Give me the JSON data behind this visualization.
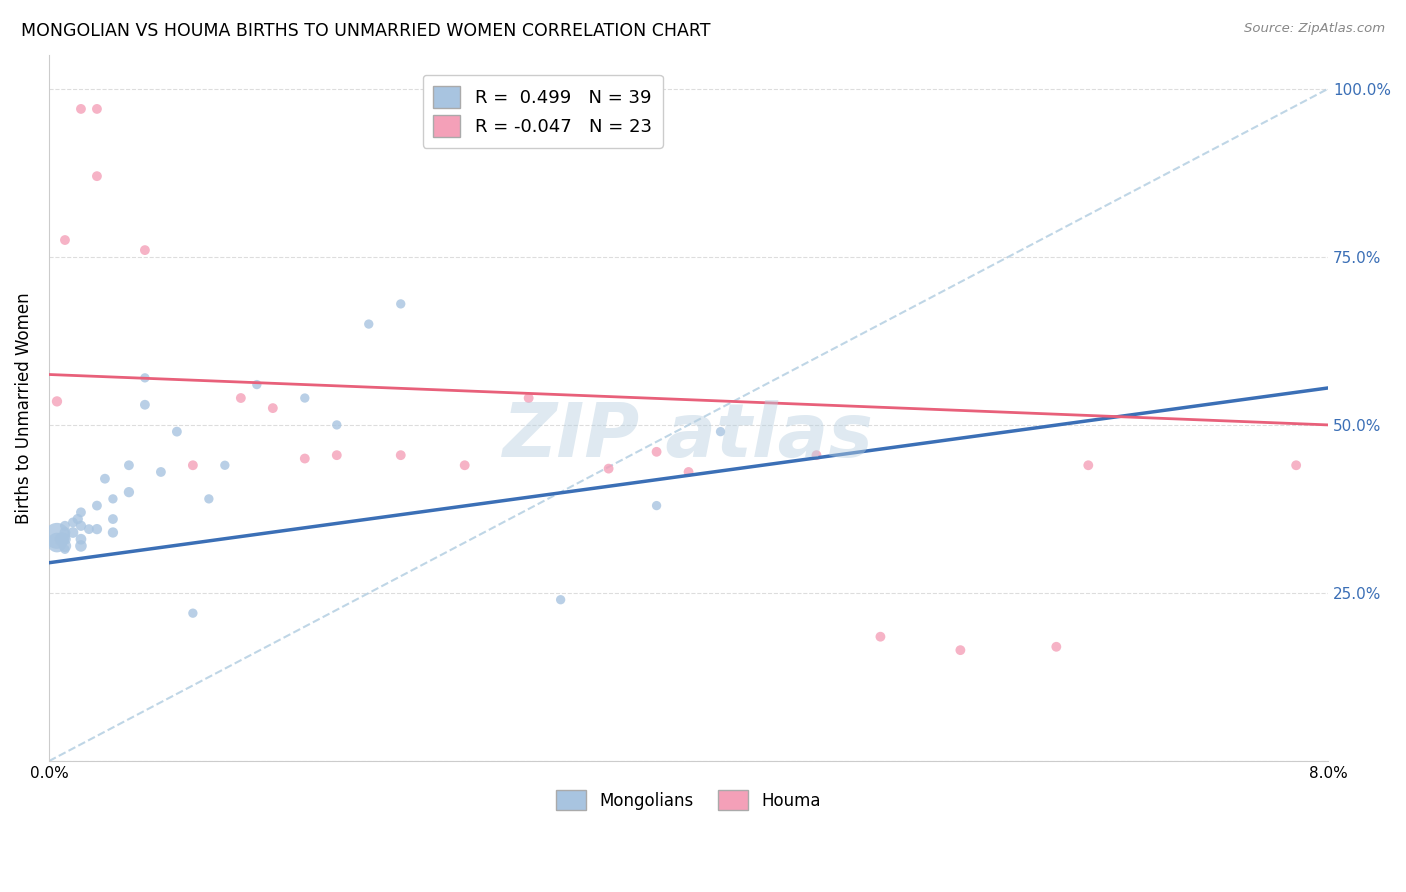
{
  "title": "MONGOLIAN VS HOUMA BIRTHS TO UNMARRIED WOMEN CORRELATION CHART",
  "source": "Source: ZipAtlas.com",
  "ylabel": "Births to Unmarried Women",
  "xlim": [
    0.0,
    0.08
  ],
  "ylim": [
    0.0,
    1.05
  ],
  "background_color": "#ffffff",
  "mongolian_color": "#a8c4e0",
  "houma_color": "#f4a0b8",
  "mongolian_line_color": "#3b6fb6",
  "houma_line_color": "#e8607a",
  "ref_line_color": "#b0cce0",
  "grid_color": "#dddddd",
  "legend_mongolian_label": "R =  0.499   N = 39",
  "legend_houma_label": "R = -0.047   N = 23",
  "mongolian_line_y0": 0.295,
  "mongolian_line_y1": 0.555,
  "houma_line_y0": 0.575,
  "houma_line_y1": 0.5,
  "mongolian_x": [
    0.0005,
    0.0005,
    0.0008,
    0.001,
    0.001,
    0.001,
    0.001,
    0.001,
    0.0015,
    0.0015,
    0.0018,
    0.002,
    0.002,
    0.002,
    0.002,
    0.0025,
    0.003,
    0.003,
    0.0035,
    0.004,
    0.004,
    0.004,
    0.005,
    0.005,
    0.006,
    0.006,
    0.007,
    0.008,
    0.009,
    0.01,
    0.011,
    0.013,
    0.016,
    0.018,
    0.02,
    0.022,
    0.032,
    0.038,
    0.042
  ],
  "mongolian_y": [
    0.335,
    0.325,
    0.33,
    0.32,
    0.33,
    0.34,
    0.35,
    0.315,
    0.34,
    0.355,
    0.36,
    0.32,
    0.33,
    0.35,
    0.37,
    0.345,
    0.345,
    0.38,
    0.42,
    0.34,
    0.36,
    0.39,
    0.4,
    0.44,
    0.53,
    0.57,
    0.43,
    0.49,
    0.22,
    0.39,
    0.44,
    0.56,
    0.54,
    0.5,
    0.65,
    0.68,
    0.24,
    0.38,
    0.49
  ],
  "mongolian_sizes": [
    350,
    200,
    100,
    80,
    70,
    60,
    50,
    45,
    60,
    50,
    55,
    70,
    60,
    55,
    50,
    50,
    55,
    50,
    50,
    55,
    50,
    45,
    55,
    50,
    50,
    45,
    50,
    50,
    45,
    45,
    45,
    45,
    45,
    45,
    45,
    45,
    45,
    45,
    45
  ],
  "houma_x": [
    0.0005,
    0.001,
    0.002,
    0.003,
    0.003,
    0.006,
    0.009,
    0.012,
    0.014,
    0.016,
    0.018,
    0.022,
    0.026,
    0.03,
    0.035,
    0.038,
    0.04,
    0.048,
    0.052,
    0.057,
    0.063,
    0.065,
    0.078
  ],
  "houma_y": [
    0.535,
    0.775,
    0.97,
    0.87,
    0.97,
    0.76,
    0.44,
    0.54,
    0.525,
    0.45,
    0.455,
    0.455,
    0.44,
    0.54,
    0.435,
    0.46,
    0.43,
    0.455,
    0.185,
    0.165,
    0.17,
    0.44,
    0.44
  ],
  "houma_sizes": [
    55,
    50,
    50,
    50,
    50,
    50,
    50,
    50,
    50,
    50,
    50,
    50,
    50,
    50,
    50,
    50,
    50,
    50,
    50,
    50,
    50,
    50,
    50
  ]
}
